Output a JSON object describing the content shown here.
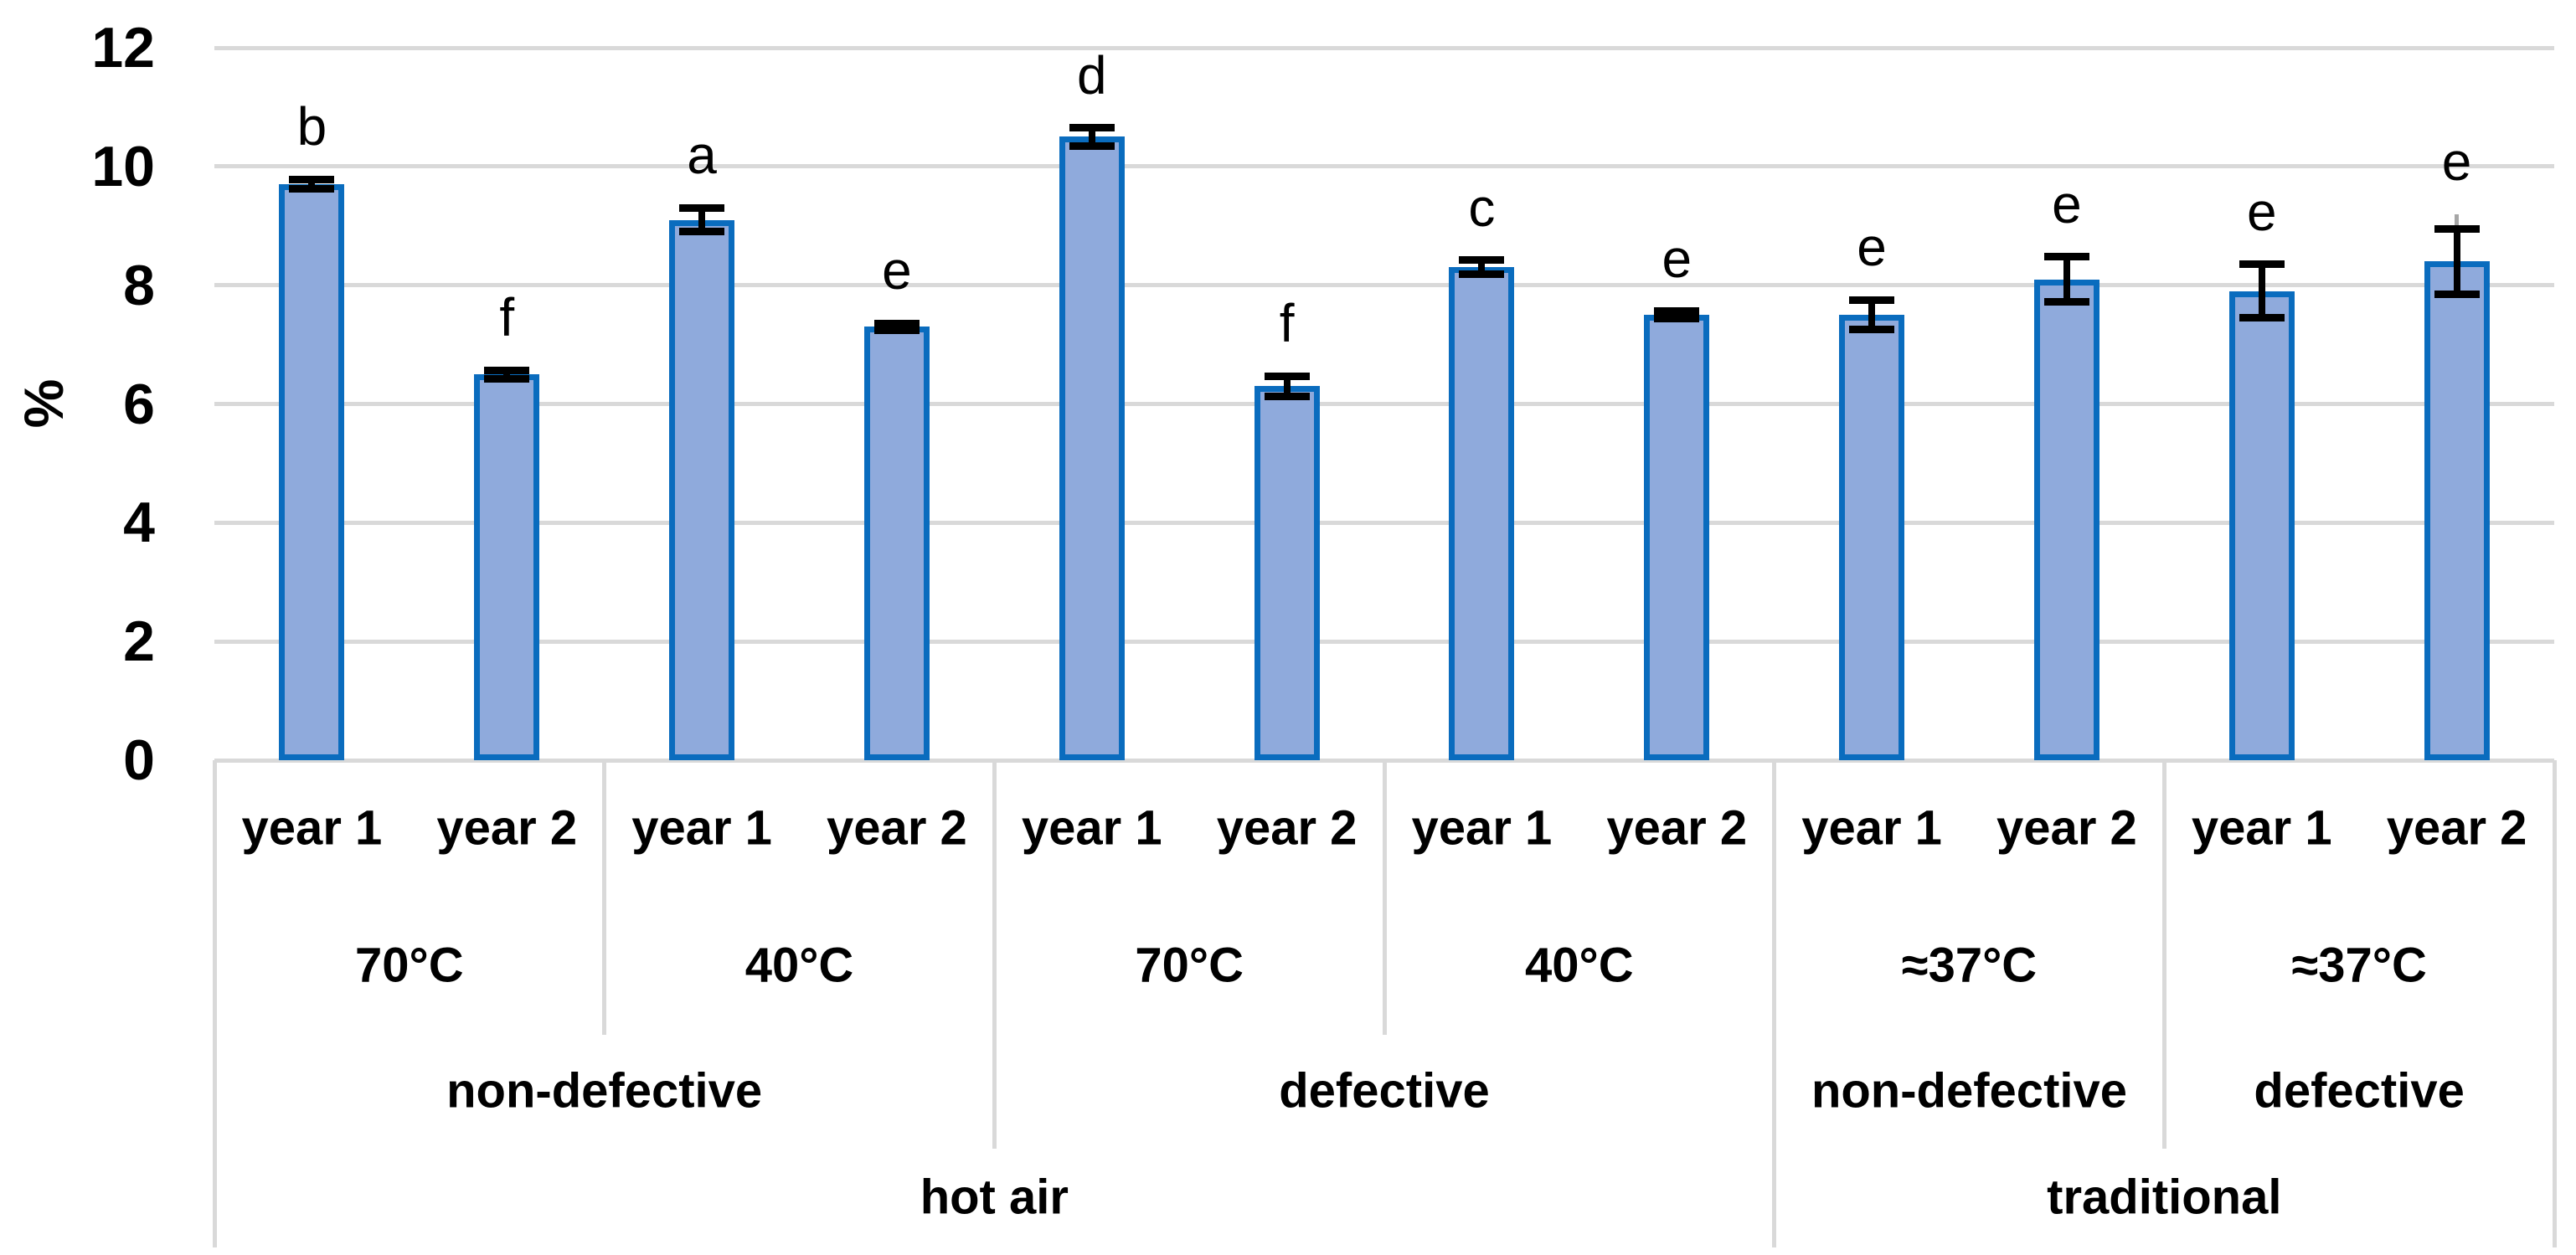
{
  "chart_data": {
    "type": "bar",
    "title": "",
    "ylabel": "%",
    "xlabel": "",
    "ylim": [
      0,
      12
    ],
    "yticks": [
      0,
      2,
      4,
      6,
      8,
      10,
      12
    ],
    "grid": true,
    "legend": "none",
    "bar_series_count": 1,
    "bars": [
      {
        "year": "year 1",
        "letter": "b",
        "value": 9.7,
        "err": 0.08
      },
      {
        "year": "year 2",
        "letter": "f",
        "value": 6.5,
        "err": 0.07
      },
      {
        "year": "year 1",
        "letter": "a",
        "value": 9.1,
        "err": 0.2
      },
      {
        "year": "year 2",
        "letter": "e",
        "value": 7.3,
        "err": 0.06
      },
      {
        "year": "year 1",
        "letter": "d",
        "value": 10.5,
        "err": 0.15
      },
      {
        "year": "year 2",
        "letter": "f",
        "value": 6.3,
        "err": 0.17
      },
      {
        "year": "year 1",
        "letter": "c",
        "value": 8.3,
        "err": 0.12
      },
      {
        "year": "year 2",
        "letter": "e",
        "value": 7.5,
        "err": 0.06
      },
      {
        "year": "year 1",
        "letter": "e",
        "value": 7.5,
        "err": 0.25
      },
      {
        "year": "year 2",
        "letter": "e",
        "value": 8.1,
        "err": 0.38
      },
      {
        "year": "year 1",
        "letter": "e",
        "value": 7.9,
        "err": 0.45
      },
      {
        "year": "year 2",
        "letter": "e",
        "value": 8.4,
        "err": 0.55,
        "err_spur_top": 9.2
      }
    ],
    "temperature_row": [
      "70°C",
      "40°C",
      "70°C",
      "40°C",
      "≈37°C",
      "≈37°C"
    ],
    "defect_row": [
      {
        "label": "non-defective",
        "span_groups": 2
      },
      {
        "label": "defective",
        "span_groups": 2
      },
      {
        "label": "non-defective",
        "span_groups": 1
      },
      {
        "label": "defective",
        "span_groups": 1
      }
    ],
    "method_row": [
      {
        "label": "hot air",
        "span_groups": 4
      },
      {
        "label": "traditional",
        "span_groups": 2
      }
    ],
    "colors": {
      "bar_fill": "#8FAADC",
      "bar_border": "#0A6CBE",
      "gridline": "#D9D9D9",
      "table_border": "#D9D9D9",
      "error_bar": "#000000",
      "error_spur": "#A6A6A6",
      "text": "#000000",
      "background": "#FFFFFF"
    }
  }
}
